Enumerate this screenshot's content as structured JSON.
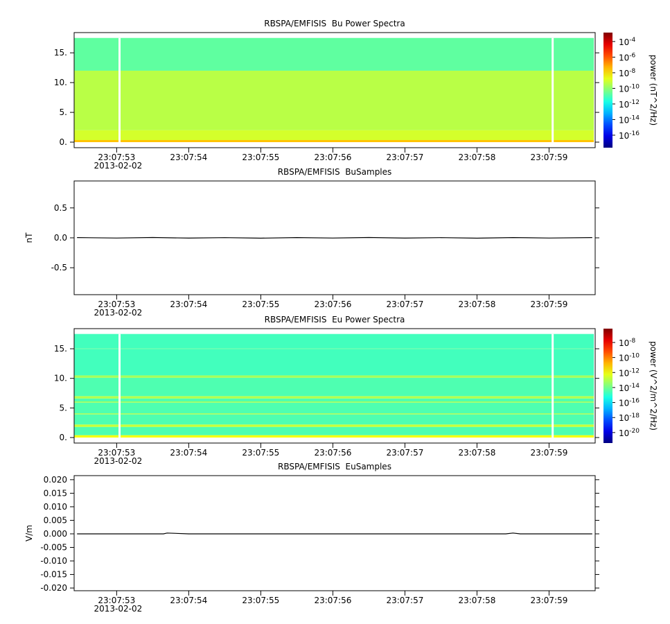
{
  "chart_data": [
    {
      "type": "spectrogram",
      "title": "RBSPA/EMFISIS  Bu Power Spectra",
      "date": "2013-02-02",
      "xlim": [
        "23:07:52.41",
        "23:07:59.64"
      ],
      "xticks": [
        "23:07:53",
        "23:07:54",
        "23:07:55",
        "23:07:56",
        "23:07:57",
        "23:07:58",
        "23:07:59"
      ],
      "ylim": [
        -0.93,
        18.4
      ],
      "yticks": [
        {
          "value": 0,
          "label": "0."
        },
        {
          "value": 5,
          "label": "5."
        },
        {
          "value": 10,
          "label": "10."
        },
        {
          "value": 15,
          "label": "15."
        }
      ],
      "freq_edges": [
        0,
        0.35,
        2,
        12,
        17.5
      ],
      "values": [
        3e-08,
        1e-09,
        4e-10,
        2e-11
      ],
      "gaps": [
        "23:07:53.04",
        "23:07:59.05"
      ],
      "colormap": "jet",
      "zscale": "log",
      "zlim": [
        2.5e-18,
        0.0014
      ],
      "zticks": [
        {
          "value": 0.0001,
          "label": "10",
          "exponent": -4
        },
        {
          "value": 1e-06,
          "label": "10",
          "exponent": -6
        },
        {
          "value": 1e-08,
          "label": "10",
          "exponent": -8
        },
        {
          "value": 1e-10,
          "label": "10",
          "exponent": -10
        },
        {
          "value": 1e-12,
          "label": "10",
          "exponent": -12
        },
        {
          "value": 1e-14,
          "label": "10",
          "exponent": -14
        },
        {
          "value": 1e-16,
          "label": "10",
          "exponent": -16
        }
      ],
      "zlabel": "power (nT^2/Hz)"
    },
    {
      "type": "line",
      "title": "RBSPA/EMFISIS  BuSamples",
      "date": "2013-02-02",
      "ylabel": "nT",
      "xlim": [
        "23:07:52.41",
        "23:07:59.64"
      ],
      "xticks": [
        "23:07:53",
        "23:07:54",
        "23:07:55",
        "23:07:56",
        "23:07:57",
        "23:07:58",
        "23:07:59"
      ],
      "ylim": [
        -0.95,
        0.95
      ],
      "yticks": [
        {
          "value": -0.5,
          "label": "-0.5"
        },
        {
          "value": 0,
          "label": "0.0"
        },
        0.5
      ],
      "color": "#000000",
      "x": [
        "23:07:52.45",
        "23:07:53.0",
        "23:07:53.5",
        "23:07:54.0",
        "23:07:54.5",
        "23:07:55.0",
        "23:07:55.5",
        "23:07:56.0",
        "23:07:56.5",
        "23:07:57.0",
        "23:07:57.5",
        "23:07:58.0",
        "23:07:58.5",
        "23:07:59.0",
        "23:07:59.6"
      ],
      "values": [
        0.005,
        -0.004,
        0.006,
        -0.005,
        0.004,
        -0.006,
        0.005,
        -0.004,
        0.006,
        -0.005,
        0.004,
        -0.006,
        0.005,
        -0.004,
        0.005
      ]
    },
    {
      "type": "spectrogram",
      "title": "RBSPA/EMFISIS  Eu Power Spectra",
      "date": "2013-02-02",
      "xlim": [
        "23:07:52.41",
        "23:07:59.64"
      ],
      "xticks": [
        "23:07:53",
        "23:07:54",
        "23:07:55",
        "23:07:56",
        "23:07:57",
        "23:07:58",
        "23:07:59"
      ],
      "ylim": [
        -0.93,
        18.4
      ],
      "yticks": [
        {
          "value": 0,
          "label": "0."
        },
        {
          "value": 5,
          "label": "5."
        },
        {
          "value": 10,
          "label": "10."
        },
        {
          "value": 15,
          "label": "15."
        }
      ],
      "freq_edges": [
        0,
        0.4,
        1.8,
        2.2,
        3.9,
        4.1,
        5.9,
        6.1,
        6.6,
        7.0,
        10.1,
        10.5,
        14.9,
        15.1,
        17.5
      ],
      "values": [
        1e-12,
        3e-15,
        2e-13,
        3e-15,
        6e-14,
        3e-15,
        6e-14,
        3e-15,
        1e-13,
        3e-15,
        6e-14,
        2e-15,
        4e-15,
        2e-15
      ],
      "gaps": [
        "23:07:53.04",
        "23:07:59.05"
      ],
      "colormap": "jet",
      "zscale": "log",
      "zlim": [
        4e-22,
        7e-07
      ],
      "zticks": [
        {
          "value": 1e-08,
          "label": "10",
          "exponent": -8
        },
        {
          "value": 1e-10,
          "label": "10",
          "exponent": -10
        },
        {
          "value": 1e-12,
          "label": "10",
          "exponent": -12
        },
        {
          "value": 1e-14,
          "label": "10",
          "exponent": -14
        },
        {
          "value": 1e-16,
          "label": "10",
          "exponent": -16
        },
        {
          "value": 1e-18,
          "label": "10",
          "exponent": -18
        },
        {
          "value": 1e-20,
          "label": "10",
          "exponent": -20
        }
      ],
      "zlabel": "power (V^2/m^2/Hz)"
    },
    {
      "type": "line",
      "title": "RBSPA/EMFISIS  EuSamples",
      "date": "2013-02-02",
      "ylabel": "V/m",
      "xlim": [
        "23:07:52.41",
        "23:07:59.64"
      ],
      "xticks": [
        "23:07:53",
        "23:07:54",
        "23:07:55",
        "23:07:56",
        "23:07:57",
        "23:07:58",
        "23:07:59"
      ],
      "ylim": [
        -0.021,
        0.0215
      ],
      "yticks": [
        {
          "value": -0.02,
          "label": "-0.020"
        },
        {
          "value": -0.015,
          "label": "-0.015"
        },
        {
          "value": -0.01,
          "label": "-0.010"
        },
        {
          "value": -0.005,
          "label": "-0.005"
        },
        {
          "value": 0,
          "label": "0.000"
        },
        {
          "value": 0.005,
          "label": "0.005"
        },
        {
          "value": 0.01,
          "label": "0.010"
        },
        {
          "value": 0.015,
          "label": "0.015"
        },
        {
          "value": 0.02,
          "label": "0.020"
        }
      ],
      "color": "#000000",
      "x": [
        "23:07:52.45",
        "23:07:53.0",
        "23:07:53.65",
        "23:07:53.7",
        "23:07:54.0",
        "23:07:55.0",
        "23:07:56.0",
        "23:07:57.0",
        "23:07:58.0",
        "23:07:58.4",
        "23:07:58.5",
        "23:07:58.6",
        "23:07:59.0",
        "23:07:59.6"
      ],
      "values": [
        0,
        0,
        0,
        0.0003,
        0,
        0,
        0,
        0,
        0,
        0,
        0.0003,
        0,
        0,
        0
      ]
    }
  ]
}
